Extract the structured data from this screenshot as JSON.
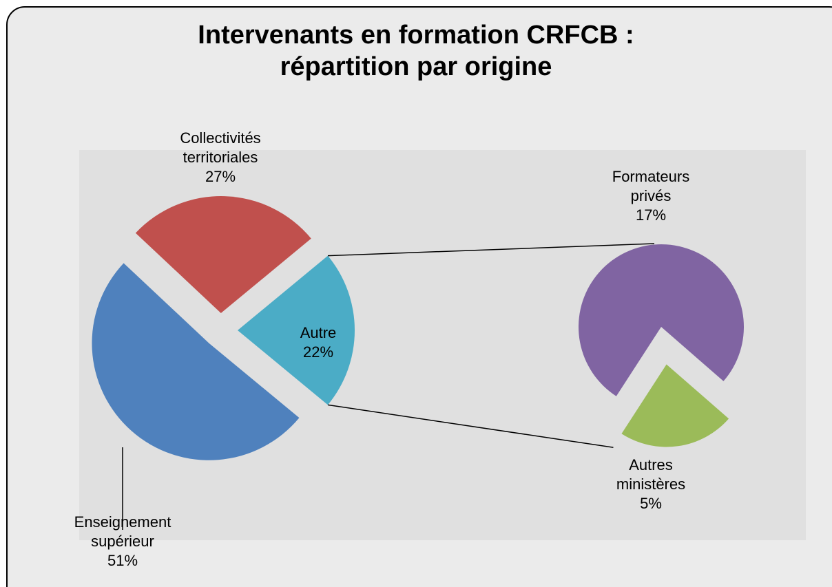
{
  "chart_data": {
    "type": "pie-of-pie",
    "title": "Intervenants en formation CRFCB : répartition par origine",
    "categories": [
      "Enseignement supérieur",
      "Collectivités territoriales",
      "Autre"
    ],
    "values": [
      51,
      27,
      22
    ],
    "value_labels": [
      "51%",
      "27%",
      "22%"
    ],
    "colors": [
      "#4f81bd",
      "#c0504d",
      "#4bacc6"
    ],
    "secondary": {
      "categories": [
        "Formateurs privés",
        "Autres ministères"
      ],
      "values": [
        17,
        5
      ],
      "value_labels": [
        "17%",
        "5%"
      ],
      "colors": [
        "#8064a2",
        "#9bbb59"
      ]
    }
  }
}
